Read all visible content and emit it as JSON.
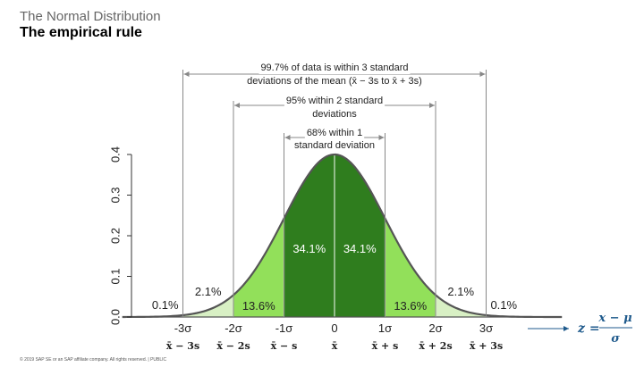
{
  "header": {
    "subtitle": "The Normal Distribution",
    "title": "The empirical rule"
  },
  "footer": {
    "text": "© 2019 SAP SE or an SAP affiliate company. All rights reserved.  |  PUBLIC"
  },
  "colors": {
    "dark_green": "#2f7d1e",
    "light_green": "#92e05a",
    "pale_green": "#d8f0c4",
    "curve": "#555555",
    "arrow": "#888888",
    "formula": "#1f5a8c"
  },
  "chart_data": {
    "type": "area",
    "distribution": "standard normal",
    "ylim": [
      0.0,
      0.4
    ],
    "y_ticks": [
      "0.0",
      "0.1",
      "0.2",
      "0.3",
      "0.4"
    ],
    "xlim": [
      -4.2,
      4.5
    ],
    "x_ticks": [
      {
        "x": -3,
        "sigma_label": "-3σ",
        "sample_label": "x̄ − 3s"
      },
      {
        "x": -2,
        "sigma_label": "-2σ",
        "sample_label": "x̄ − 2s"
      },
      {
        "x": -1,
        "sigma_label": "-1σ",
        "sample_label": "x̄ − s"
      },
      {
        "x": 0,
        "sigma_label": "0",
        "sample_label": "x̄"
      },
      {
        "x": 1,
        "sigma_label": "1σ",
        "sample_label": "x̄ + s"
      },
      {
        "x": 2,
        "sigma_label": "2σ",
        "sample_label": "x̄ + 2s"
      },
      {
        "x": 3,
        "sigma_label": "3σ",
        "sample_label": "x̄ + 3s"
      }
    ],
    "regions": [
      {
        "from": -3,
        "to": -2,
        "percent": "2.1%",
        "shade": "pale"
      },
      {
        "from": -2,
        "to": -1,
        "percent": "13.6%",
        "shade": "light"
      },
      {
        "from": -1,
        "to": 0,
        "percent": "34.1%",
        "shade": "dark"
      },
      {
        "from": 0,
        "to": 1,
        "percent": "34.1%",
        "shade": "dark"
      },
      {
        "from": 1,
        "to": 2,
        "percent": "13.6%",
        "shade": "light"
      },
      {
        "from": 2,
        "to": 3,
        "percent": "2.1%",
        "shade": "pale"
      }
    ],
    "tail_labels": {
      "left": "0.1%",
      "right": "0.1%"
    },
    "intervals": [
      {
        "from": -3,
        "to": 3,
        "line1": "99.7% of data is within 3 standard",
        "line2": "deviations of the mean (x̄ − 3s to x̄ + 3s)"
      },
      {
        "from": -2,
        "to": 2,
        "line1": "95% within 2 standard",
        "line2": "deviations"
      },
      {
        "from": -1,
        "to": 1,
        "line1": "68% within 1",
        "line2": "standard deviation"
      }
    ],
    "formula": {
      "lhs": "z =",
      "numerator": "x − μ",
      "denominator": "σ"
    }
  }
}
